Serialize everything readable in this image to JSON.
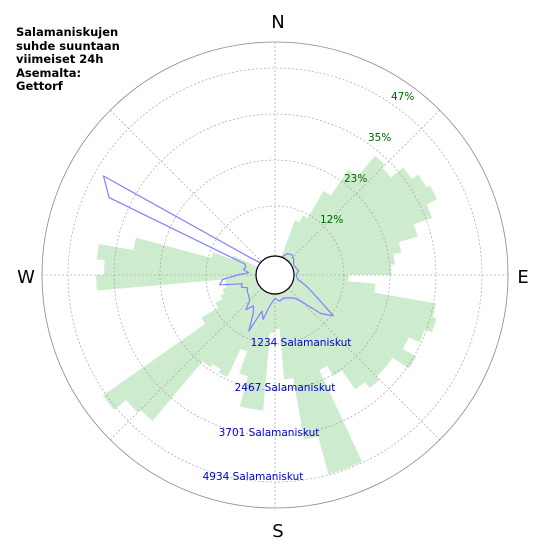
{
  "title_lines": [
    "Salamaniskujen",
    "suhde suuntaan",
    "viimeiset 24h",
    "Asemalta:",
    "Gettorf"
  ],
  "compass": {
    "n": "N",
    "e": "E",
    "s": "S",
    "w": "W"
  },
  "colors": {
    "histogram_fill": "#cdeccd",
    "line": "#8080ff",
    "percent_text": "#006400",
    "count_text": "#0000cc",
    "grid": "#999999"
  },
  "chart_data": {
    "type": "polar-bar-and-line",
    "percent_ticks": [
      "12%",
      "23%",
      "35%",
      "47%"
    ],
    "count_ticks": [
      "1234 Salamaniskut",
      "2467 Salamaniskut",
      "3701 Salamaniskut",
      "4934 Salamaniskut"
    ],
    "histogram": [
      {
        "az": 22.5,
        "pct": 10
      },
      {
        "az": 27.5,
        "pct": 12
      },
      {
        "az": 32.5,
        "pct": 20
      },
      {
        "az": 37.5,
        "pct": 28
      },
      {
        "az": 42.5,
        "pct": 35
      },
      {
        "az": 47.5,
        "pct": 34
      },
      {
        "az": 52.5,
        "pct": 38
      },
      {
        "az": 57.5,
        "pct": 40
      },
      {
        "az": 62.5,
        "pct": 41
      },
      {
        "az": 67.5,
        "pct": 38
      },
      {
        "az": 72.5,
        "pct": 33
      },
      {
        "az": 77.5,
        "pct": 28
      },
      {
        "az": 82.5,
        "pct": 26
      },
      {
        "az": 87.5,
        "pct": 25
      },
      {
        "az": 92.5,
        "pct": 14
      },
      {
        "az": 97.5,
        "pct": 21
      },
      {
        "az": 102.5,
        "pct": 37
      },
      {
        "az": 107.5,
        "pct": 38
      },
      {
        "az": 112.5,
        "pct": 36
      },
      {
        "az": 117.5,
        "pct": 33
      },
      {
        "az": 122.5,
        "pct": 37
      },
      {
        "az": 127.5,
        "pct": 32
      },
      {
        "az": 132.5,
        "pct": 32
      },
      {
        "az": 137.5,
        "pct": 33
      },
      {
        "az": 142.5,
        "pct": 31
      },
      {
        "az": 147.5,
        "pct": 25
      },
      {
        "az": 152.5,
        "pct": 22
      },
      {
        "az": 157.5,
        "pct": 48
      },
      {
        "az": 162.5,
        "pct": 48
      },
      {
        "az": 167.5,
        "pct": 38
      },
      {
        "az": 172.5,
        "pct": 22
      },
      {
        "az": 177.5,
        "pct": 9
      },
      {
        "az": 182.5,
        "pct": 10
      },
      {
        "az": 187.5,
        "pct": 30
      },
      {
        "az": 192.5,
        "pct": 30
      },
      {
        "az": 197.5,
        "pct": 22
      },
      {
        "az": 202.5,
        "pct": 16
      },
      {
        "az": 207.5,
        "pct": 24
      },
      {
        "az": 212.5,
        "pct": 23
      },
      {
        "az": 217.5,
        "pct": 24
      },
      {
        "az": 222.5,
        "pct": 44
      },
      {
        "az": 227.5,
        "pct": 45
      },
      {
        "az": 232.5,
        "pct": 49
      },
      {
        "az": 237.5,
        "pct": 17
      },
      {
        "az": 242.5,
        "pct": 12
      },
      {
        "az": 247.5,
        "pct": 10
      },
      {
        "az": 252.5,
        "pct": 9
      },
      {
        "az": 257.5,
        "pct": 8
      },
      {
        "az": 262.5,
        "pct": 8
      },
      {
        "az": 267.5,
        "pct": 41
      },
      {
        "az": 272.5,
        "pct": 39
      },
      {
        "az": 277.5,
        "pct": 41
      },
      {
        "az": 282.5,
        "pct": 32
      },
      {
        "az": 287.5,
        "pct": 12
      },
      {
        "az": 292.5,
        "pct": 7
      }
    ],
    "strikes": [
      {
        "az": 0,
        "n": 0
      },
      {
        "az": 20,
        "n": 0
      },
      {
        "az": 30,
        "n": 150
      },
      {
        "az": 40,
        "n": 200
      },
      {
        "az": 50,
        "n": 150
      },
      {
        "az": 60,
        "n": 60
      },
      {
        "az": 70,
        "n": 80
      },
      {
        "az": 80,
        "n": 130
      },
      {
        "az": 90,
        "n": 60
      },
      {
        "az": 100,
        "n": 100
      },
      {
        "az": 110,
        "n": 400
      },
      {
        "az": 115,
        "n": 600
      },
      {
        "az": 120,
        "n": 900
      },
      {
        "az": 125,
        "n": 1400
      },
      {
        "az": 130,
        "n": 1100
      },
      {
        "az": 135,
        "n": 500
      },
      {
        "az": 140,
        "n": 300
      },
      {
        "az": 150,
        "n": 200
      },
      {
        "az": 160,
        "n": 150
      },
      {
        "az": 170,
        "n": 200
      },
      {
        "az": 180,
        "n": 120
      },
      {
        "az": 185,
        "n": 200
      },
      {
        "az": 190,
        "n": 350
      },
      {
        "az": 195,
        "n": 720
      },
      {
        "az": 200,
        "n": 520
      },
      {
        "az": 205,
        "n": 1150
      },
      {
        "az": 210,
        "n": 650
      },
      {
        "az": 215,
        "n": 500
      },
      {
        "az": 220,
        "n": 700
      },
      {
        "az": 225,
        "n": 450
      },
      {
        "az": 230,
        "n": 400
      },
      {
        "az": 240,
        "n": 350
      },
      {
        "az": 245,
        "n": 300
      },
      {
        "az": 250,
        "n": 450
      },
      {
        "az": 255,
        "n": 400
      },
      {
        "az": 260,
        "n": 1000
      },
      {
        "az": 265,
        "n": 900
      },
      {
        "az": 270,
        "n": 500
      },
      {
        "az": 275,
        "n": 200
      },
      {
        "az": 280,
        "n": 350
      },
      {
        "az": 285,
        "n": 300
      },
      {
        "az": 290,
        "n": 350
      },
      {
        "az": 295,
        "n": 4400
      },
      {
        "az": 300,
        "n": 4800
      },
      {
        "az": 305,
        "n": 300
      },
      {
        "az": 310,
        "n": 0
      },
      {
        "az": 320,
        "n": 0
      },
      {
        "az": 340,
        "n": 0
      },
      {
        "az": 360,
        "n": 0
      }
    ],
    "grid": true
  }
}
